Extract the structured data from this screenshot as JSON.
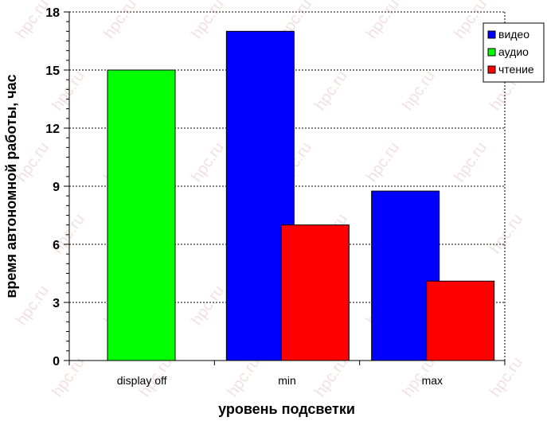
{
  "chart_data": {
    "type": "bar",
    "categories": [
      "display off",
      "min",
      "max"
    ],
    "series": [
      {
        "name": "видео",
        "color": "#0000ff",
        "values": [
          null,
          17,
          8.75
        ]
      },
      {
        "name": "аудио",
        "color": "#00ff00",
        "values": [
          15,
          null,
          null
        ]
      },
      {
        "name": "чтение",
        "color": "#ff0000",
        "values": [
          null,
          7,
          4.1
        ]
      }
    ],
    "xlabel": "уровень подсветки",
    "ylabel": "время автономной работы, час",
    "ylim": [
      0,
      18
    ],
    "yticks": [
      0,
      3,
      6,
      9,
      12,
      15,
      18
    ],
    "grid": true,
    "legend_position": "top-right",
    "watermark": "hpc.ru"
  }
}
